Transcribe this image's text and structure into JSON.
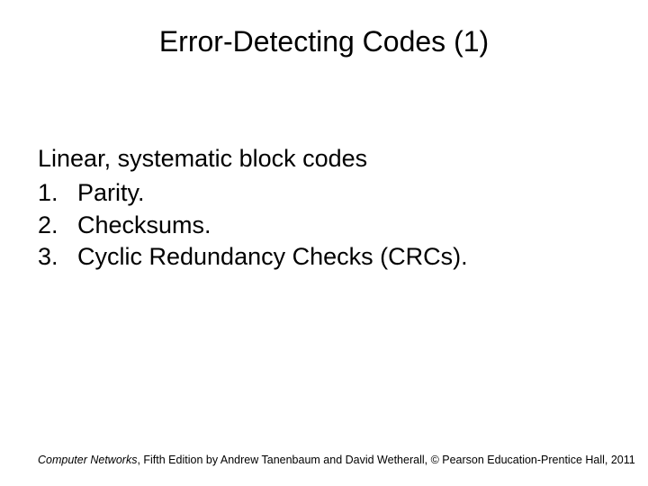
{
  "title": "Error-Detecting Codes (1)",
  "intro": "Linear, systematic block codes",
  "items": {
    "0": "Parity.",
    "1": "Checksums.",
    "2": "Cyclic Redundancy Checks (CRCs)."
  },
  "footer": {
    "book": "Computer Networks",
    "rest": ", Fifth Edition by Andrew Tanenbaum and David Wetherall, © Pearson Education-Prentice Hall, 2011"
  }
}
